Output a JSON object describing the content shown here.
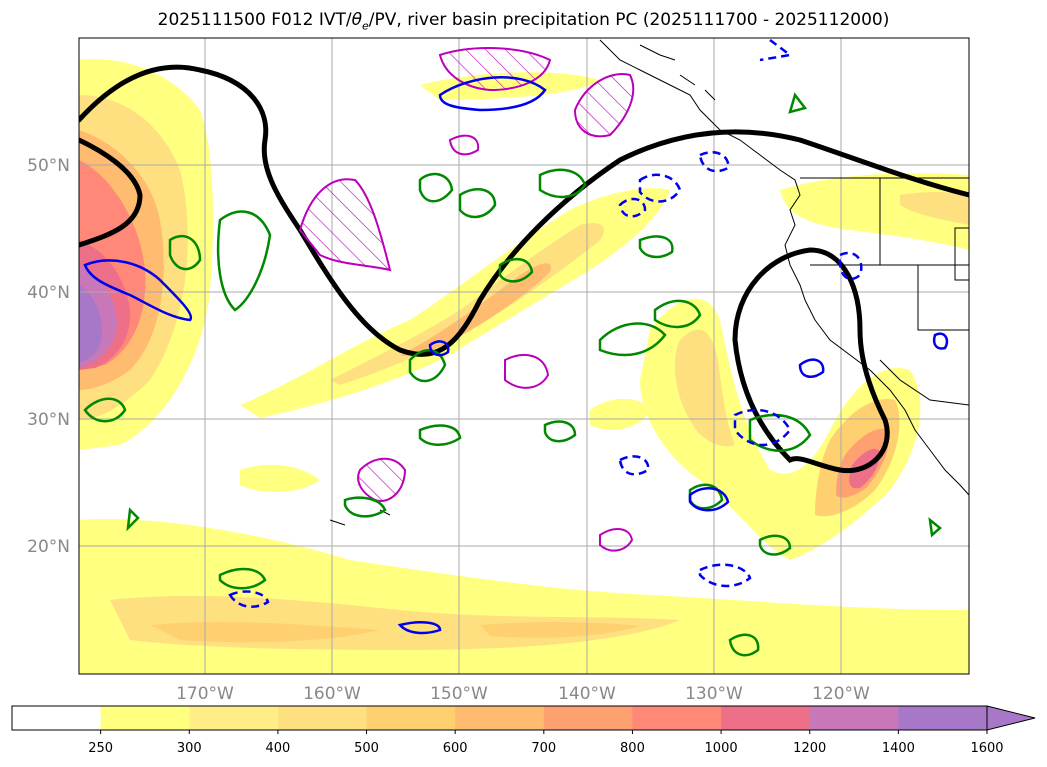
{
  "title": {
    "prefix": "2025111500 F012 IVT/",
    "theta": "θ",
    "theta_sub": "e",
    "suffix": "/PV, river basin precipitation PC (2025111700 - 2025112000)"
  },
  "map": {
    "lat_labels": [
      "20°N",
      "30°N",
      "40°N",
      "50°N"
    ],
    "lon_labels": [
      "170°W",
      "160°W",
      "150°W",
      "140°W",
      "130°W",
      "120°W"
    ]
  },
  "colorbar": {
    "ticks": [
      "250",
      "300",
      "400",
      "500",
      "600",
      "700",
      "800",
      "1000",
      "1200",
      "1400",
      "1600"
    ],
    "colors": [
      "#ffffff",
      "#ffff80",
      "#ffee88",
      "#ffe080",
      "#ffd070",
      "#ffbb70",
      "#ffa070",
      "#ff8878",
      "#ee7088",
      "#c878b8",
      "#a878c8"
    ]
  }
}
